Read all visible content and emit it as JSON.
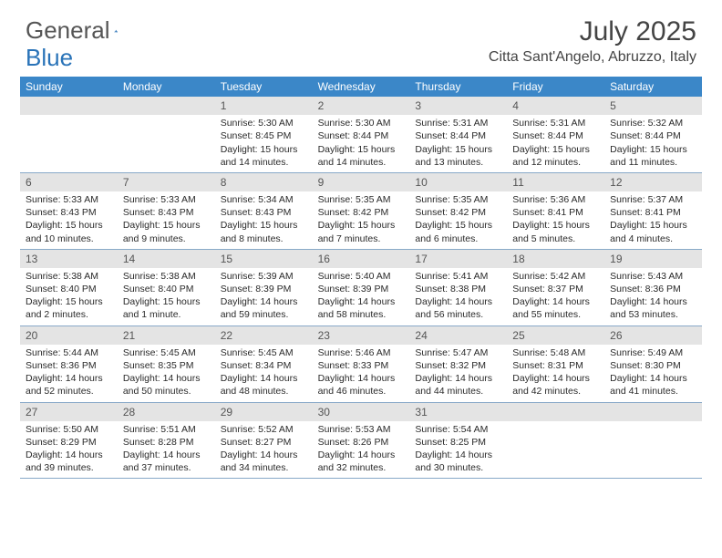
{
  "logo": {
    "text1": "General",
    "text2": "Blue"
  },
  "title": "July 2025",
  "location": "Citta Sant'Angelo, Abruzzo, Italy",
  "day_headers": [
    "Sunday",
    "Monday",
    "Tuesday",
    "Wednesday",
    "Thursday",
    "Friday",
    "Saturday"
  ],
  "colors": {
    "header_bg": "#3b87c8",
    "daynum_bg": "#e4e4e4",
    "border": "#88a9c8"
  },
  "weeks": [
    [
      {
        "empty": true
      },
      {
        "empty": true
      },
      {
        "num": "1",
        "sunrise": "Sunrise: 5:30 AM",
        "sunset": "Sunset: 8:45 PM",
        "day1": "Daylight: 15 hours",
        "day2": "and 14 minutes."
      },
      {
        "num": "2",
        "sunrise": "Sunrise: 5:30 AM",
        "sunset": "Sunset: 8:44 PM",
        "day1": "Daylight: 15 hours",
        "day2": "and 14 minutes."
      },
      {
        "num": "3",
        "sunrise": "Sunrise: 5:31 AM",
        "sunset": "Sunset: 8:44 PM",
        "day1": "Daylight: 15 hours",
        "day2": "and 13 minutes."
      },
      {
        "num": "4",
        "sunrise": "Sunrise: 5:31 AM",
        "sunset": "Sunset: 8:44 PM",
        "day1": "Daylight: 15 hours",
        "day2": "and 12 minutes."
      },
      {
        "num": "5",
        "sunrise": "Sunrise: 5:32 AM",
        "sunset": "Sunset: 8:44 PM",
        "day1": "Daylight: 15 hours",
        "day2": "and 11 minutes."
      }
    ],
    [
      {
        "num": "6",
        "sunrise": "Sunrise: 5:33 AM",
        "sunset": "Sunset: 8:43 PM",
        "day1": "Daylight: 15 hours",
        "day2": "and 10 minutes."
      },
      {
        "num": "7",
        "sunrise": "Sunrise: 5:33 AM",
        "sunset": "Sunset: 8:43 PM",
        "day1": "Daylight: 15 hours",
        "day2": "and 9 minutes."
      },
      {
        "num": "8",
        "sunrise": "Sunrise: 5:34 AM",
        "sunset": "Sunset: 8:43 PM",
        "day1": "Daylight: 15 hours",
        "day2": "and 8 minutes."
      },
      {
        "num": "9",
        "sunrise": "Sunrise: 5:35 AM",
        "sunset": "Sunset: 8:42 PM",
        "day1": "Daylight: 15 hours",
        "day2": "and 7 minutes."
      },
      {
        "num": "10",
        "sunrise": "Sunrise: 5:35 AM",
        "sunset": "Sunset: 8:42 PM",
        "day1": "Daylight: 15 hours",
        "day2": "and 6 minutes."
      },
      {
        "num": "11",
        "sunrise": "Sunrise: 5:36 AM",
        "sunset": "Sunset: 8:41 PM",
        "day1": "Daylight: 15 hours",
        "day2": "and 5 minutes."
      },
      {
        "num": "12",
        "sunrise": "Sunrise: 5:37 AM",
        "sunset": "Sunset: 8:41 PM",
        "day1": "Daylight: 15 hours",
        "day2": "and 4 minutes."
      }
    ],
    [
      {
        "num": "13",
        "sunrise": "Sunrise: 5:38 AM",
        "sunset": "Sunset: 8:40 PM",
        "day1": "Daylight: 15 hours",
        "day2": "and 2 minutes."
      },
      {
        "num": "14",
        "sunrise": "Sunrise: 5:38 AM",
        "sunset": "Sunset: 8:40 PM",
        "day1": "Daylight: 15 hours",
        "day2": "and 1 minute."
      },
      {
        "num": "15",
        "sunrise": "Sunrise: 5:39 AM",
        "sunset": "Sunset: 8:39 PM",
        "day1": "Daylight: 14 hours",
        "day2": "and 59 minutes."
      },
      {
        "num": "16",
        "sunrise": "Sunrise: 5:40 AM",
        "sunset": "Sunset: 8:39 PM",
        "day1": "Daylight: 14 hours",
        "day2": "and 58 minutes."
      },
      {
        "num": "17",
        "sunrise": "Sunrise: 5:41 AM",
        "sunset": "Sunset: 8:38 PM",
        "day1": "Daylight: 14 hours",
        "day2": "and 56 minutes."
      },
      {
        "num": "18",
        "sunrise": "Sunrise: 5:42 AM",
        "sunset": "Sunset: 8:37 PM",
        "day1": "Daylight: 14 hours",
        "day2": "and 55 minutes."
      },
      {
        "num": "19",
        "sunrise": "Sunrise: 5:43 AM",
        "sunset": "Sunset: 8:36 PM",
        "day1": "Daylight: 14 hours",
        "day2": "and 53 minutes."
      }
    ],
    [
      {
        "num": "20",
        "sunrise": "Sunrise: 5:44 AM",
        "sunset": "Sunset: 8:36 PM",
        "day1": "Daylight: 14 hours",
        "day2": "and 52 minutes."
      },
      {
        "num": "21",
        "sunrise": "Sunrise: 5:45 AM",
        "sunset": "Sunset: 8:35 PM",
        "day1": "Daylight: 14 hours",
        "day2": "and 50 minutes."
      },
      {
        "num": "22",
        "sunrise": "Sunrise: 5:45 AM",
        "sunset": "Sunset: 8:34 PM",
        "day1": "Daylight: 14 hours",
        "day2": "and 48 minutes."
      },
      {
        "num": "23",
        "sunrise": "Sunrise: 5:46 AM",
        "sunset": "Sunset: 8:33 PM",
        "day1": "Daylight: 14 hours",
        "day2": "and 46 minutes."
      },
      {
        "num": "24",
        "sunrise": "Sunrise: 5:47 AM",
        "sunset": "Sunset: 8:32 PM",
        "day1": "Daylight: 14 hours",
        "day2": "and 44 minutes."
      },
      {
        "num": "25",
        "sunrise": "Sunrise: 5:48 AM",
        "sunset": "Sunset: 8:31 PM",
        "day1": "Daylight: 14 hours",
        "day2": "and 42 minutes."
      },
      {
        "num": "26",
        "sunrise": "Sunrise: 5:49 AM",
        "sunset": "Sunset: 8:30 PM",
        "day1": "Daylight: 14 hours",
        "day2": "and 41 minutes."
      }
    ],
    [
      {
        "num": "27",
        "sunrise": "Sunrise: 5:50 AM",
        "sunset": "Sunset: 8:29 PM",
        "day1": "Daylight: 14 hours",
        "day2": "and 39 minutes."
      },
      {
        "num": "28",
        "sunrise": "Sunrise: 5:51 AM",
        "sunset": "Sunset: 8:28 PM",
        "day1": "Daylight: 14 hours",
        "day2": "and 37 minutes."
      },
      {
        "num": "29",
        "sunrise": "Sunrise: 5:52 AM",
        "sunset": "Sunset: 8:27 PM",
        "day1": "Daylight: 14 hours",
        "day2": "and 34 minutes."
      },
      {
        "num": "30",
        "sunrise": "Sunrise: 5:53 AM",
        "sunset": "Sunset: 8:26 PM",
        "day1": "Daylight: 14 hours",
        "day2": "and 32 minutes."
      },
      {
        "num": "31",
        "sunrise": "Sunrise: 5:54 AM",
        "sunset": "Sunset: 8:25 PM",
        "day1": "Daylight: 14 hours",
        "day2": "and 30 minutes."
      },
      {
        "empty": true
      },
      {
        "empty": true
      }
    ]
  ]
}
